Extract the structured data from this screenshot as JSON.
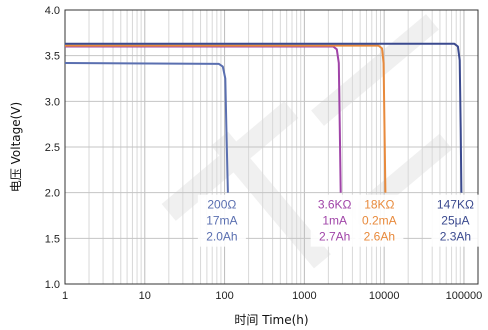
{
  "chart_data": {
    "type": "line",
    "xlabel": "时间 Time(h)",
    "ylabel": "电压 Voltage(V)",
    "xscale": "log",
    "xlim": [
      1,
      150000
    ],
    "ylim": [
      1.0,
      4.0
    ],
    "grid": true,
    "xticks": [
      {
        "value": 1,
        "label": "1"
      },
      {
        "value": 10,
        "label": "10"
      },
      {
        "value": 100,
        "label": "100"
      },
      {
        "value": 1000,
        "label": "1000"
      },
      {
        "value": 10000,
        "label": "10000"
      },
      {
        "value": 100000,
        "label": "100000"
      }
    ],
    "yticks": [
      {
        "value": 1.0,
        "label": "1.0"
      },
      {
        "value": 1.5,
        "label": "1.5"
      },
      {
        "value": 2.0,
        "label": "2.0"
      },
      {
        "value": 2.5,
        "label": "2.5"
      },
      {
        "value": 3.0,
        "label": "3.0"
      },
      {
        "value": 3.5,
        "label": "3.5"
      },
      {
        "value": 4.0,
        "label": "4.0"
      }
    ],
    "series": [
      {
        "color": "#5a6fb0",
        "x": [
          1,
          85,
          95,
          102,
          106,
          110
        ],
        "y": [
          3.42,
          3.41,
          3.38,
          3.25,
          2.6,
          2.0
        ],
        "labels": [
          "200Ω",
          "17mA",
          "2.0Ah"
        ]
      },
      {
        "color": "#a044a8",
        "x": [
          1,
          2300,
          2550,
          2700,
          2780,
          2850
        ],
        "y": [
          3.6,
          3.6,
          3.57,
          3.42,
          2.7,
          2.0
        ],
        "labels": [
          "3.6KΩ",
          "1mA",
          "2.7Ah"
        ]
      },
      {
        "color": "#e88a3c",
        "x": [
          1,
          8500,
          9400,
          9850,
          10100,
          10350
        ],
        "y": [
          3.61,
          3.61,
          3.58,
          3.42,
          2.7,
          2.0
        ],
        "labels": [
          "18KΩ",
          "0.2mA",
          "2.6Ah"
        ]
      },
      {
        "color": "#3b4a8f",
        "x": [
          1,
          76000,
          84000,
          88500,
          91000,
          93000
        ],
        "y": [
          3.63,
          3.63,
          3.6,
          3.45,
          2.7,
          2.0
        ],
        "labels": [
          "147KΩ",
          "25μA",
          "2.3Ah"
        ]
      }
    ]
  }
}
